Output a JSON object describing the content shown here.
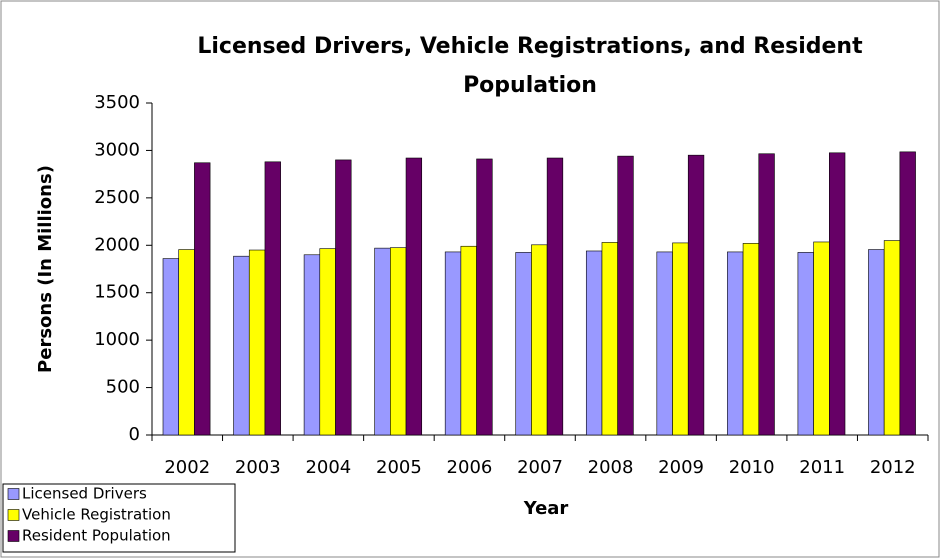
{
  "chart_data": {
    "type": "bar",
    "title": "Licensed Drivers, Vehicle Registrations, and Resident Population",
    "x_label": "Year",
    "y_label": "Persons (In Millions)",
    "categories": [
      "2002",
      "2003",
      "2004",
      "2005",
      "2006",
      "2007",
      "2008",
      "2009",
      "2010",
      "2011",
      "2012"
    ],
    "series": [
      {
        "name": "Licensed Drivers",
        "color": "#9999ff",
        "values": [
          1860,
          1885,
          1900,
          1970,
          1930,
          1925,
          1940,
          1930,
          1930,
          1925,
          1955
        ]
      },
      {
        "name": "Vehicle Registration",
        "color": "#ffff00",
        "values": [
          1955,
          1950,
          1965,
          1975,
          1990,
          2005,
          2030,
          2025,
          2020,
          2035,
          2050
        ]
      },
      {
        "name": "Resident Population",
        "color": "#660066",
        "values": [
          2870,
          2880,
          2900,
          2920,
          2910,
          2920,
          2940,
          2950,
          2965,
          2975,
          2985
        ]
      }
    ],
    "ylim": [
      0,
      3500
    ],
    "yticks": [
      0,
      500,
      1000,
      1500,
      2000,
      2500,
      3000,
      3500
    ],
    "grid": false,
    "legend": "bottom-left"
  }
}
